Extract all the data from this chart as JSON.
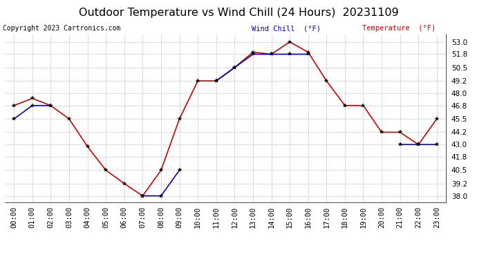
{
  "title": "Outdoor Temperature vs Wind Chill (24 Hours)  20231109",
  "copyright": "Copyright 2023 Cartronics.com",
  "legend_wind_chill": "Wind Chill  (°F)",
  "legend_temperature": "Temperature  (°F)",
  "hours": [
    "00:00",
    "01:00",
    "02:00",
    "03:00",
    "04:00",
    "05:00",
    "06:00",
    "07:00",
    "08:00",
    "09:00",
    "10:00",
    "11:00",
    "12:00",
    "13:00",
    "14:00",
    "15:00",
    "16:00",
    "17:00",
    "18:00",
    "19:00",
    "20:00",
    "21:00",
    "22:00",
    "23:00"
  ],
  "temperature": [
    46.8,
    47.5,
    46.8,
    45.5,
    42.8,
    40.5,
    39.2,
    38.0,
    40.5,
    45.5,
    49.2,
    49.2,
    50.5,
    52.0,
    51.8,
    53.0,
    52.0,
    49.2,
    46.8,
    46.8,
    44.2,
    44.2,
    43.0,
    45.5
  ],
  "wind_chill": [
    45.5,
    46.8,
    46.8,
    null,
    null,
    null,
    null,
    38.0,
    38.0,
    40.5,
    null,
    49.2,
    50.5,
    51.8,
    51.8,
    51.8,
    51.8,
    null,
    null,
    null,
    null,
    43.0,
    43.0,
    43.0
  ],
  "ylim_min": 37.4,
  "ylim_max": 53.8,
  "yticks": [
    38.0,
    39.2,
    40.5,
    41.8,
    43.0,
    44.2,
    45.5,
    46.8,
    48.0,
    49.2,
    50.5,
    51.8,
    53.0
  ],
  "temperature_color": "#cc0000",
  "wind_chill_color": "#0000cc",
  "marker_color": "#000000",
  "bg_color": "#ffffff",
  "grid_color": "#bbbbbb",
  "title_fontsize": 11.5,
  "tick_fontsize": 7.5,
  "copyright_fontsize": 7.0,
  "legend_fontsize": 7.5
}
